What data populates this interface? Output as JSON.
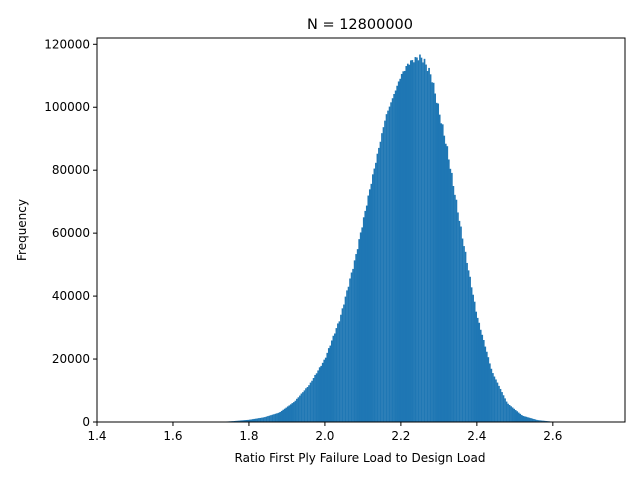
{
  "chart_data": {
    "type": "bar",
    "title": "N = 12800000",
    "xlabel": "Ratio First Ply Failure Load to Design Load",
    "ylabel": "Frequency",
    "xlim": [
      1.4,
      2.79
    ],
    "ylim": [
      0,
      122000
    ],
    "xticks": [
      "1.4",
      "1.6",
      "1.8",
      "2.0",
      "2.2",
      "2.4",
      "2.6"
    ],
    "yticks": [
      "0",
      "20000",
      "40000",
      "60000",
      "80000",
      "100000",
      "120000"
    ],
    "grid": false,
    "bar_color": "#1f77b4",
    "histogram": {
      "bin_width": 0.004,
      "x": [
        1.72,
        1.76,
        1.8,
        1.84,
        1.88,
        1.92,
        1.96,
        2.0,
        2.04,
        2.08,
        2.12,
        2.16,
        2.2,
        2.22,
        2.24,
        2.25,
        2.26,
        2.28,
        2.32,
        2.36,
        2.4,
        2.44,
        2.48,
        2.52,
        2.56,
        2.6,
        2.63
      ],
      "y": [
        0,
        300,
        700,
        1500,
        3000,
        6500,
        12000,
        20000,
        33000,
        52000,
        75000,
        97000,
        110000,
        114000,
        115500,
        116000,
        115000,
        110000,
        88000,
        60000,
        34000,
        16000,
        6000,
        2000,
        600,
        100,
        0
      ]
    }
  }
}
